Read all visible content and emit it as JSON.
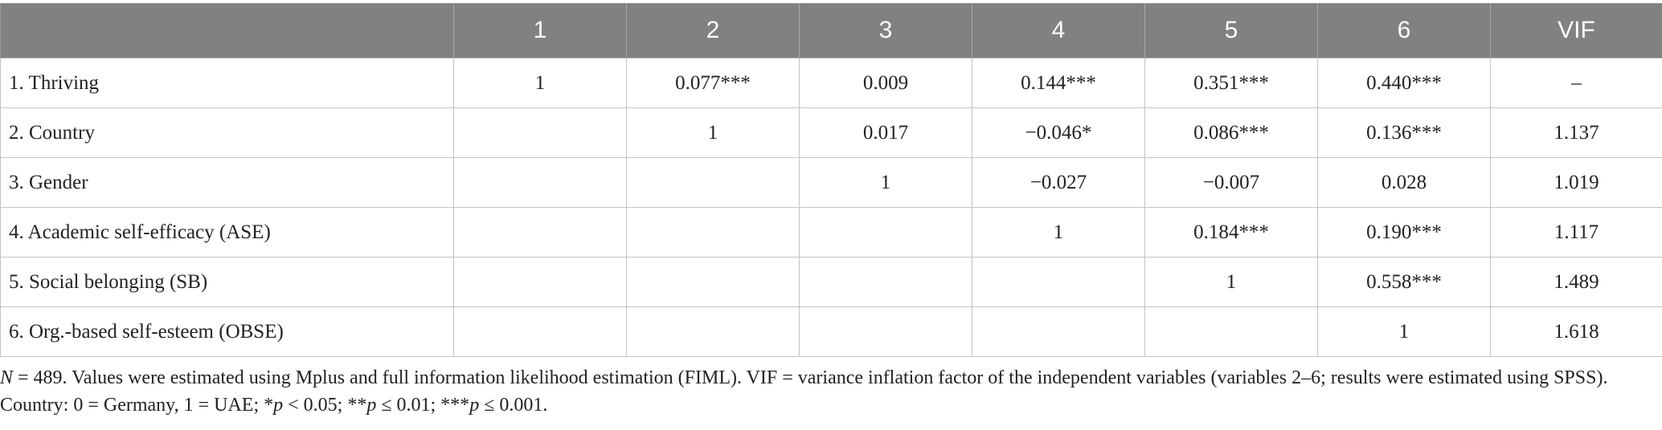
{
  "table": {
    "headers": [
      "",
      "1",
      "2",
      "3",
      "4",
      "5",
      "6",
      "VIF"
    ],
    "rows": [
      {
        "label": "1. Thriving",
        "cells": [
          "1",
          "0.077***",
          "0.009",
          "0.144***",
          "0.351***",
          "0.440***",
          "–"
        ]
      },
      {
        "label": "2. Country",
        "cells": [
          "",
          "1",
          "0.017",
          "−0.046*",
          "0.086***",
          "0.136***",
          "1.137"
        ]
      },
      {
        "label": "3. Gender",
        "cells": [
          "",
          "",
          "1",
          "−0.027",
          "−0.007",
          "0.028",
          "1.019"
        ]
      },
      {
        "label": "4. Academic self-efficacy (ASE)",
        "cells": [
          "",
          "",
          "",
          "1",
          "0.184***",
          "0.190***",
          "1.117"
        ]
      },
      {
        "label": "5. Social belonging (SB)",
        "cells": [
          "",
          "",
          "",
          "",
          "1",
          "0.558***",
          "1.489"
        ]
      },
      {
        "label": "6. Org.-based self-esteem (OBSE)",
        "cells": [
          "",
          "",
          "",
          "",
          "",
          "1",
          "1.618"
        ]
      }
    ]
  },
  "note": {
    "n_symbol": "N",
    "text_1": " = 489. Values were estimated using Mplus and full information likelihood estimation (FIML). VIF = variance inflation factor of the independent variables (variables 2–6; results were estimated using SPSS). Country: 0 = Germany, 1 = UAE; *",
    "p1": "p",
    "text_2": " < 0.05; **",
    "p2": "p",
    "text_3": " ≤ 0.01; ***",
    "p3": "p",
    "text_4": " ≤ 0.001."
  },
  "colors": {
    "header_bg": "#818181",
    "header_text": "#ffffff",
    "grid": "#c4c4c4"
  }
}
